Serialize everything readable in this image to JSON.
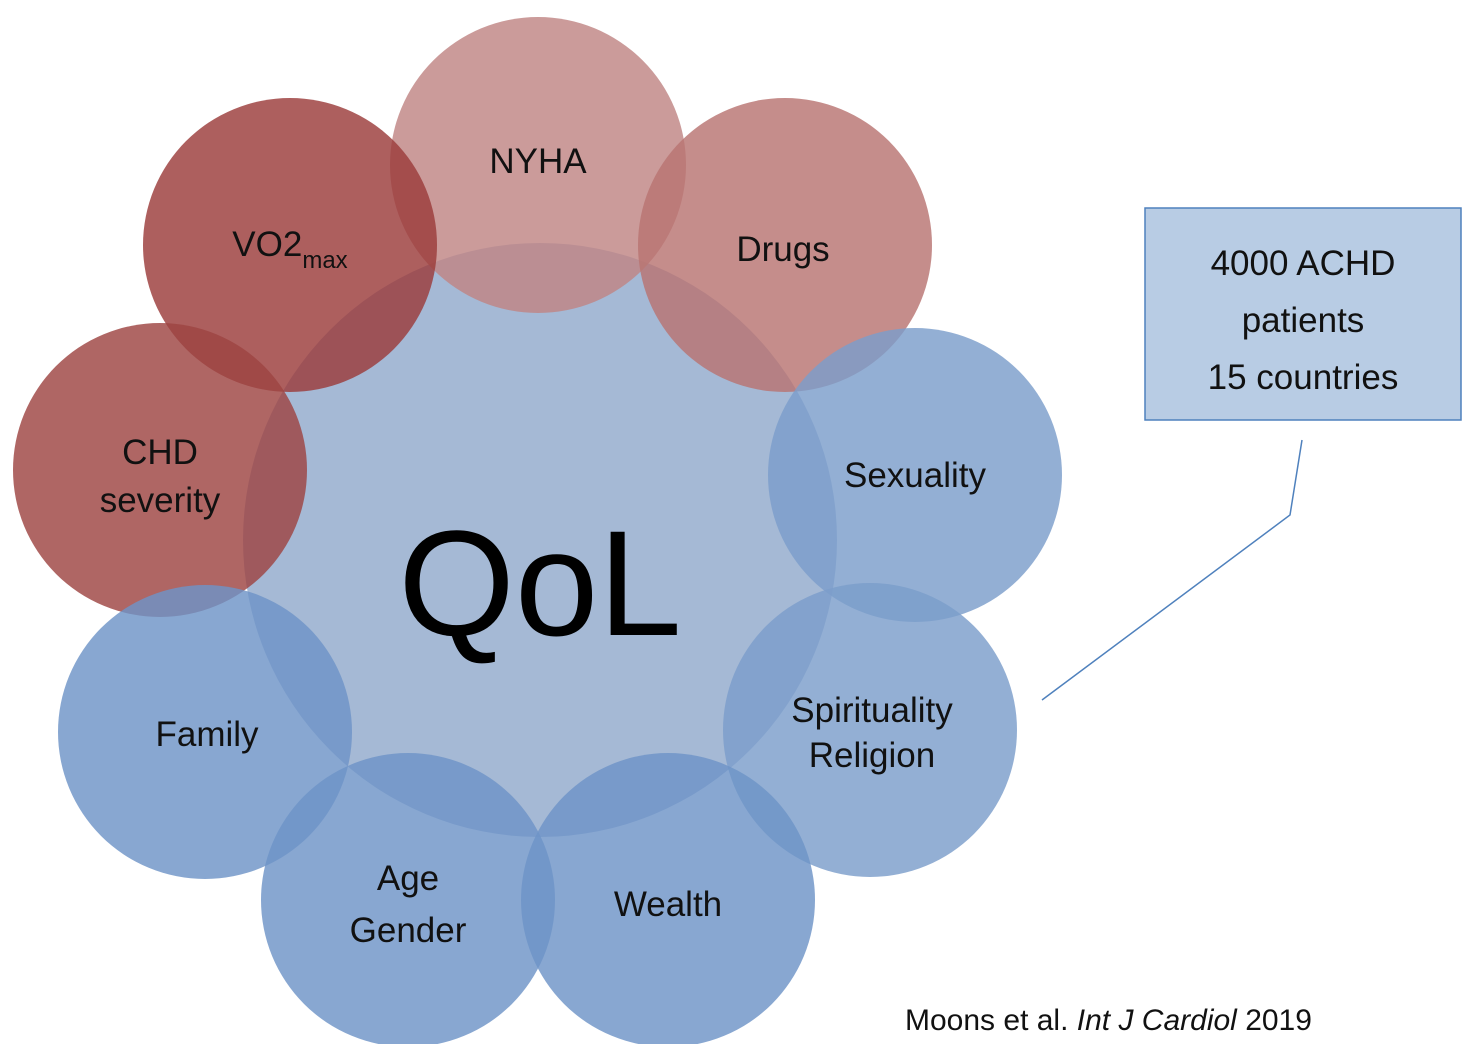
{
  "center": {
    "label": "QoL"
  },
  "nodes": [
    {
      "lines": [
        "NYHA"
      ]
    },
    {
      "lines": [
        "Drugs"
      ]
    },
    {
      "label": "VO2",
      "subscript": "max"
    },
    {
      "lines": [
        "CHD",
        "severity"
      ]
    },
    {
      "lines": [
        "Sexuality"
      ]
    },
    {
      "lines": [
        "Spirituality",
        "Religion"
      ]
    },
    {
      "lines": [
        "Wealth"
      ]
    },
    {
      "lines": [
        "Age",
        "Gender"
      ]
    },
    {
      "lines": [
        "Family"
      ]
    }
  ],
  "callout": {
    "lines": [
      "4000 ACHD",
      "patients",
      "15 countries"
    ]
  },
  "citation": {
    "authors": "Moons  et al.",
    "journal": "Int J Cardiol",
    "year": "2019"
  }
}
